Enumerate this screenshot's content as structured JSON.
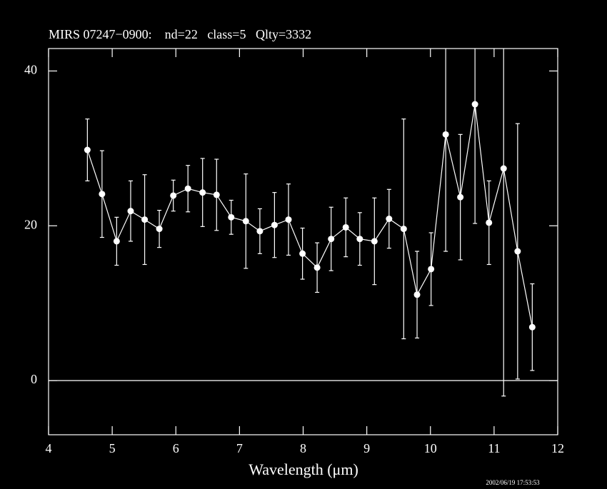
{
  "chart_data": {
    "type": "errorbar",
    "title": "MIRS 07247−0900:    nd=22   class=5   Qlty=3332",
    "xlabel": "Wavelength (μm)",
    "timestamp": "2002/06/19 17:53:53",
    "color": "#ffffff",
    "zero_line": true,
    "xlim": [
      4,
      12
    ],
    "xticks": [
      4,
      5,
      6,
      7,
      8,
      9,
      10,
      11,
      12
    ],
    "ylim": [
      -7,
      42.9
    ],
    "yticks": [
      0,
      20,
      40
    ],
    "x": [
      4.61,
      4.84,
      5.07,
      5.29,
      5.51,
      5.74,
      5.96,
      6.19,
      6.42,
      6.64,
      6.87,
      7.1,
      7.32,
      7.55,
      7.77,
      7.99,
      8.22,
      8.44,
      8.67,
      8.89,
      9.12,
      9.35,
      9.58,
      9.79,
      10.01,
      10.24,
      10.47,
      10.7,
      10.92,
      11.15,
      11.37,
      11.6
    ],
    "values": [
      29.8,
      24.1,
      18.0,
      21.9,
      20.8,
      19.6,
      23.9,
      24.8,
      24.3,
      24.0,
      21.1,
      20.6,
      19.3,
      20.1,
      20.8,
      16.4,
      14.6,
      18.3,
      19.8,
      18.3,
      18.0,
      20.9,
      19.6,
      11.1,
      14.4,
      31.8,
      23.7,
      35.7,
      20.4,
      27.4,
      16.7,
      6.9
    ],
    "errors": [
      4.0,
      5.6,
      3.1,
      3.9,
      5.8,
      2.4,
      2.0,
      3.0,
      4.4,
      4.6,
      2.2,
      6.1,
      2.9,
      4.2,
      4.6,
      3.3,
      3.2,
      4.1,
      3.8,
      3.4,
      5.6,
      3.8,
      14.2,
      5.6,
      4.7,
      15.1,
      8.1,
      15.4,
      5.4,
      29.4,
      16.5,
      5.6
    ]
  }
}
